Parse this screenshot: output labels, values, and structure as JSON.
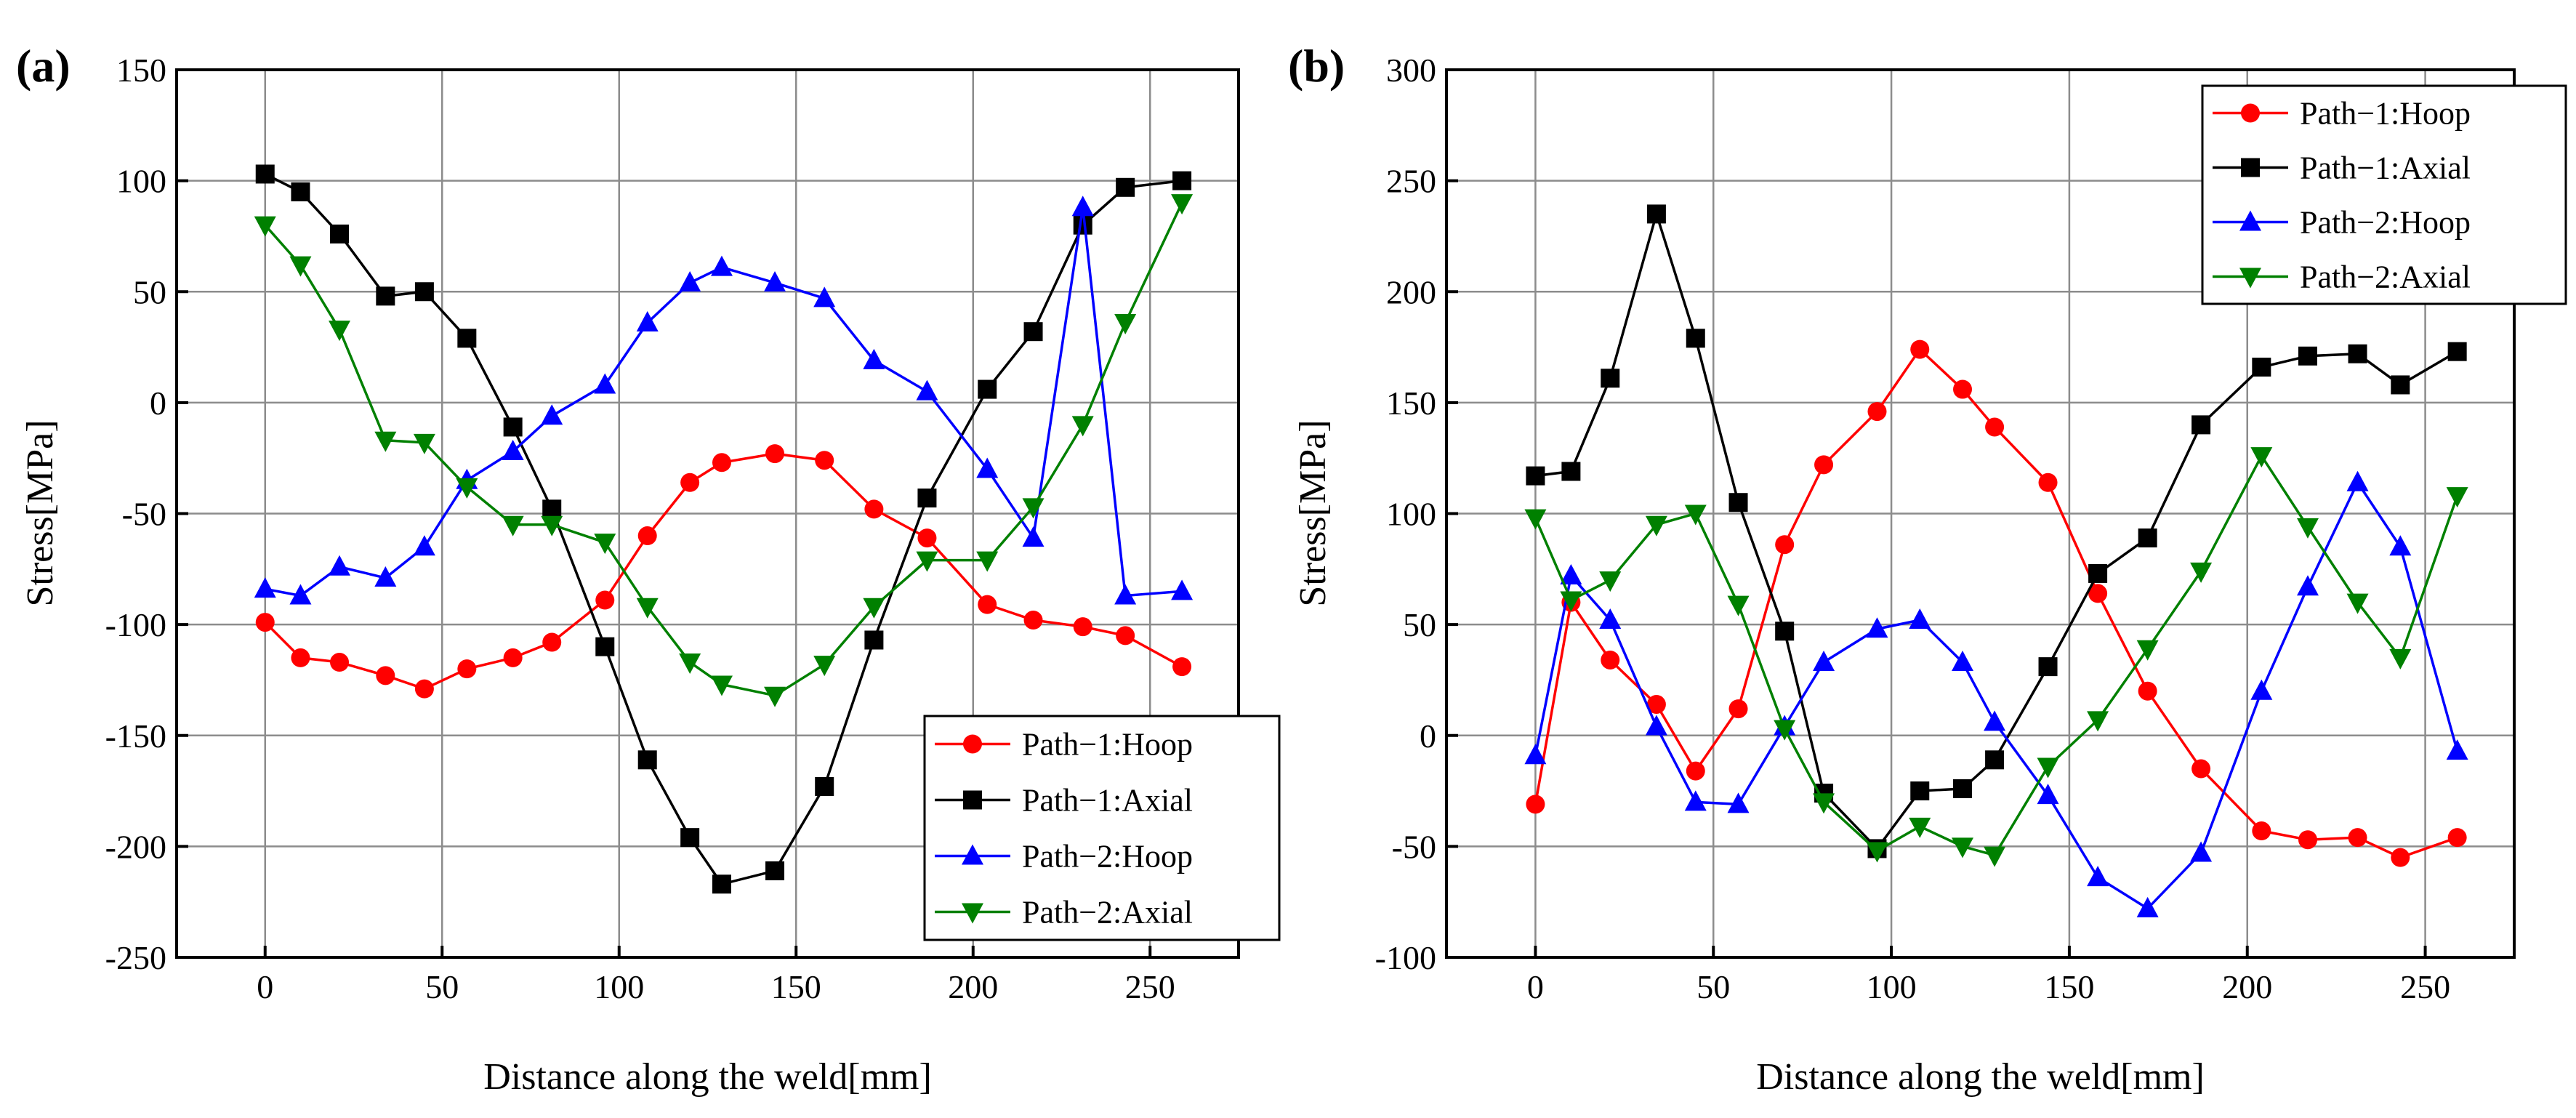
{
  "chart_data": [
    {
      "type": "line",
      "panel_label": "(a)",
      "xlabel": "Distance along the weld[mm]",
      "ylabel": "Stress[MPa]",
      "xlim": [
        -25,
        275
      ],
      "ylim": [
        -250,
        150
      ],
      "xticks": [
        0,
        50,
        100,
        150,
        200,
        250
      ],
      "yticks": [
        -250,
        -200,
        -150,
        -100,
        -50,
        0,
        50,
        100,
        150
      ],
      "grid": true,
      "legend_position": "bottom-right",
      "x": [
        0,
        10,
        21,
        34,
        45,
        57,
        70,
        81,
        96,
        108,
        120,
        129,
        144,
        158,
        172,
        187,
        204,
        217,
        231,
        243,
        259
      ],
      "series": [
        {
          "name": "Path−1:Hoop",
          "color": "#ff0000",
          "marker": "circle",
          "values": [
            -99,
            -115,
            -117,
            -123,
            -129,
            -120,
            -115,
            -108,
            -89,
            -60,
            -36,
            -27,
            -23,
            -26,
            -48,
            -61,
            -91,
            -98,
            -101,
            -105,
            -119
          ]
        },
        {
          "name": "Path−1:Axial",
          "color": "#000000",
          "marker": "square",
          "values": [
            103,
            95,
            76,
            48,
            50,
            29,
            -11,
            -48,
            -110,
            -161,
            -196,
            -217,
            -211,
            -173,
            -107,
            -43,
            6,
            32,
            80,
            97,
            100
          ]
        },
        {
          "name": "Path−2:Hoop",
          "color": "#0000ff",
          "marker": "triangle-up",
          "values": [
            -84,
            -87,
            -74,
            -79,
            -65,
            -35,
            -22,
            -6,
            8,
            36,
            54,
            61,
            54,
            47,
            19,
            5,
            -30,
            -61,
            88,
            -87,
            -85
          ]
        },
        {
          "name": "Path−2:Axial",
          "color": "#008000",
          "marker": "triangle-down",
          "values": [
            80,
            62,
            33,
            -17,
            -18,
            -38,
            -55,
            -55,
            -63,
            -92,
            -117,
            -127,
            -132,
            -118,
            -92,
            -71,
            -71,
            -47,
            -10,
            36,
            90
          ]
        }
      ]
    },
    {
      "type": "line",
      "panel_label": "(b)",
      "xlabel": "Distance along the weld[mm]",
      "ylabel": "Stress[MPa]",
      "xlim": [
        -25,
        275
      ],
      "ylim": [
        -100,
        300
      ],
      "xticks": [
        0,
        50,
        100,
        150,
        200,
        250
      ],
      "yticks": [
        -100,
        -50,
        0,
        50,
        100,
        150,
        200,
        250,
        300
      ],
      "grid": true,
      "legend_position": "top-right",
      "x": [
        0,
        10,
        21,
        34,
        45,
        57,
        70,
        81,
        96,
        108,
        120,
        129,
        144,
        158,
        172,
        187,
        204,
        217,
        231,
        243,
        259
      ],
      "series": [
        {
          "name": "Path−1:Hoop",
          "color": "#ff0000",
          "marker": "circle",
          "values": [
            -31,
            60,
            34,
            14,
            -16,
            12,
            86,
            122,
            146,
            174,
            156,
            139,
            114,
            64,
            20,
            -15,
            -43,
            -47,
            -46,
            -55,
            -46
          ]
        },
        {
          "name": "Path−1:Axial",
          "color": "#000000",
          "marker": "square",
          "values": [
            117,
            119,
            161,
            235,
            179,
            105,
            47,
            -26,
            -51,
            -25,
            -24,
            -11,
            31,
            73,
            89,
            140,
            166,
            171,
            172,
            158,
            173
          ]
        },
        {
          "name": "Path−2:Hoop",
          "color": "#0000ff",
          "marker": "triangle-up",
          "values": [
            -9,
            72,
            52,
            4,
            -30,
            -31,
            4,
            33,
            48,
            52,
            33,
            6,
            -27,
            -64,
            -78,
            -53,
            20,
            67,
            114,
            85,
            -7
          ]
        },
        {
          "name": "Path−2:Axial",
          "color": "#008000",
          "marker": "triangle-down",
          "values": [
            98,
            61,
            70,
            95,
            100,
            59,
            3,
            -30,
            -52,
            -41,
            -50,
            -54,
            -14,
            7,
            39,
            74,
            126,
            94,
            60,
            35,
            108
          ]
        }
      ]
    }
  ]
}
